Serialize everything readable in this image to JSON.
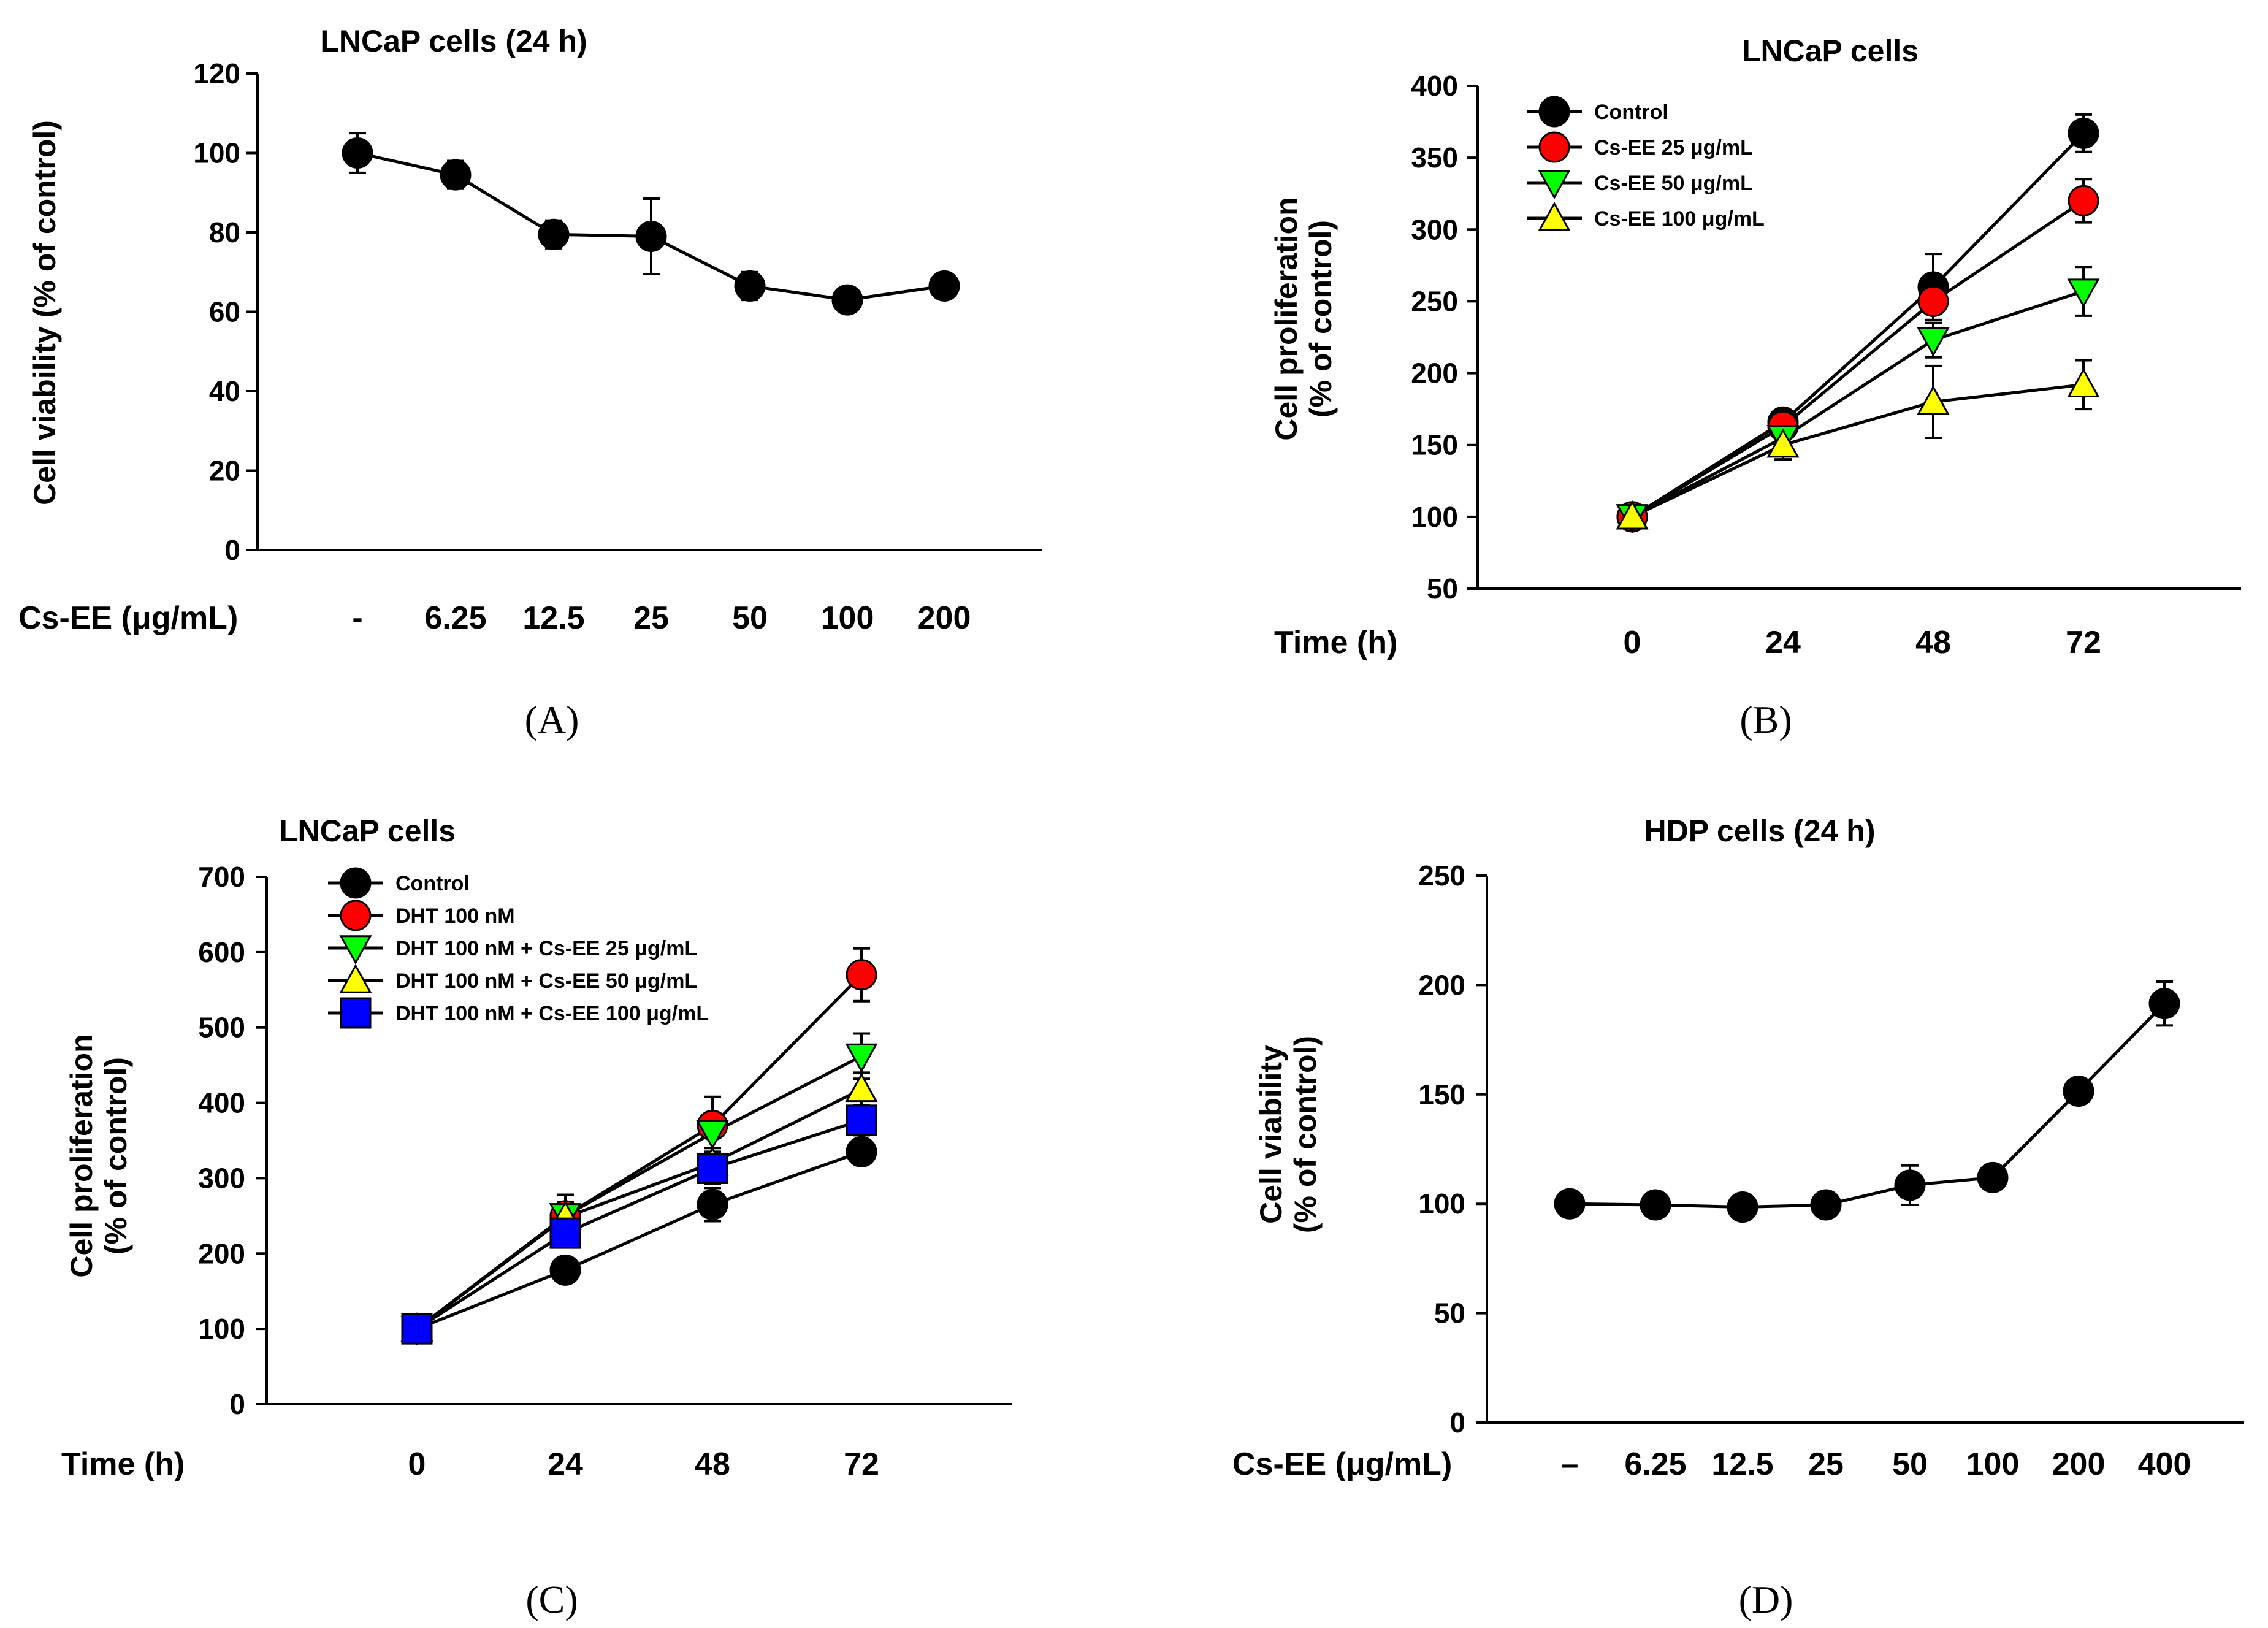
{
  "chart_data": [
    {
      "panel": "A",
      "panel_label": "(A)",
      "type": "line",
      "title": "LNCaP cells (24 h)",
      "ylabel": "Cell viability (% of control)",
      "xlabel": "Cs-EE (μg/mL)",
      "categories": [
        "-",
        "6.25",
        "12.5",
        "25",
        "50",
        "100",
        "200"
      ],
      "ylim": [
        0,
        120
      ],
      "yticks": [
        0,
        20,
        40,
        60,
        80,
        100,
        120
      ],
      "series": [
        {
          "name": "Cs-EE",
          "color": "#000000",
          "marker": "circle",
          "values": [
            100,
            94.5,
            79.5,
            79,
            66.5,
            63,
            66.5
          ],
          "errors": [
            5,
            3.5,
            3.5,
            9.5,
            3.5,
            3,
            1
          ]
        }
      ]
    },
    {
      "panel": "B",
      "panel_label": "(B)",
      "type": "line",
      "title": "LNCaP cells",
      "ylabel_lines": [
        "Cell proliferation",
        "(% of control)"
      ],
      "xlabel": "Time (h)",
      "categories": [
        "0",
        "24",
        "48",
        "72"
      ],
      "ylim": [
        50,
        400
      ],
      "yticks": [
        50,
        100,
        150,
        200,
        250,
        300,
        350,
        400
      ],
      "legend_position": "top-left",
      "series": [
        {
          "name": "Control",
          "color": "#000000",
          "marker": "circle",
          "values": [
            100,
            166,
            260,
            367
          ],
          "errors": [
            4,
            7,
            23,
            13
          ]
        },
        {
          "name": "Cs-EE 25 μg/mL",
          "color": "#ff0000",
          "marker": "circle",
          "values": [
            100,
            163,
            250,
            320
          ],
          "errors": [
            4,
            8,
            13,
            15
          ]
        },
        {
          "name": "Cs-EE 50 μg/mL",
          "color": "#00ff00",
          "marker": "triangle-down",
          "values": [
            100,
            155,
            223,
            257
          ],
          "errors": [
            4,
            9,
            12,
            17
          ]
        },
        {
          "name": "Cs-EE 100 μg/mL",
          "color": "#ffff00",
          "marker": "triangle-up",
          "values": [
            100,
            150,
            180,
            192
          ],
          "errors": [
            4,
            10,
            25,
            17
          ]
        }
      ]
    },
    {
      "panel": "C",
      "panel_label": "(C)",
      "type": "line",
      "title": "LNCaP cells",
      "ylabel_lines": [
        "Cell proliferation",
        "(% of control)"
      ],
      "xlabel": "Time (h)",
      "categories": [
        "0",
        "24",
        "48",
        "72"
      ],
      "ylim": [
        0,
        700
      ],
      "yticks": [
        0,
        100,
        200,
        300,
        400,
        500,
        600,
        700
      ],
      "legend_position": "top-left",
      "series": [
        {
          "name": "Control",
          "color": "#000000",
          "marker": "circle",
          "values": [
            100,
            178,
            265,
            335
          ],
          "errors": [
            5,
            8,
            22,
            12
          ]
        },
        {
          "name": "DHT 100 nM",
          "color": "#ff0000",
          "marker": "circle",
          "values": [
            100,
            250,
            370,
            570
          ],
          "errors": [
            5,
            28,
            38,
            35
          ]
        },
        {
          "name": "DHT 100 nM + Cs-EE 25 μg/mL",
          "color": "#00ff00",
          "marker": "triangle-down",
          "values": [
            100,
            250,
            360,
            462
          ],
          "errors": [
            5,
            18,
            25,
            30
          ]
        },
        {
          "name": "DHT 100 nM + Cs-EE 50 μg/mL",
          "color": "#ffff00",
          "marker": "triangle-up",
          "values": [
            100,
            248,
            320,
            418
          ],
          "errors": [
            5,
            15,
            20,
            22
          ]
        },
        {
          "name": "DHT 100 nM + Cs-EE 100 μg/mL",
          "color": "#0000ff",
          "marker": "square",
          "values": [
            100,
            227,
            313,
            377
          ],
          "errors": [
            5,
            15,
            20,
            20
          ]
        }
      ]
    },
    {
      "panel": "D",
      "panel_label": "(D)",
      "type": "line",
      "title": "HDP cells (24 h)",
      "ylabel_lines": [
        "Cell viability",
        "(% of control)"
      ],
      "xlabel": "Cs-EE (μg/mL)",
      "categories": [
        "–",
        "6.25",
        "12.5",
        "25",
        "50",
        "100",
        "200",
        "400"
      ],
      "ylim": [
        0,
        250
      ],
      "yticks": [
        0,
        50,
        100,
        150,
        200,
        250
      ],
      "series": [
        {
          "name": "Cs-EE",
          "color": "#000000",
          "marker": "circle",
          "values": [
            100,
            99.5,
            98.5,
            99.5,
            108.5,
            112,
            151.5,
            191.5
          ],
          "errors": [
            4,
            3,
            2,
            2,
            9,
            5,
            4,
            10
          ]
        }
      ]
    }
  ]
}
